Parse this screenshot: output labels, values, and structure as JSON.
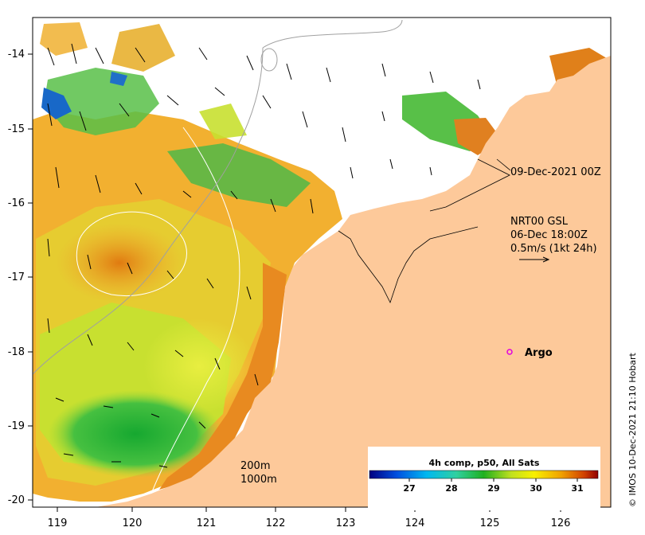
{
  "map": {
    "lon_ticks": [
      "119",
      "120",
      "121",
      "122",
      "123",
      "124",
      "125",
      "126"
    ],
    "lat_ticks": [
      "-14",
      "-15",
      "-16",
      "-17",
      "-18",
      "-19",
      "-20"
    ],
    "timestamp_label": "09-Dec-2021 00Z",
    "current": {
      "source": "NRT00 GSL",
      "time": "06-Dec 18:00Z",
      "scale": "0.5m/s (1kt 24h)"
    },
    "argo": {
      "label": "Argo",
      "marker_color": "#e000e0"
    },
    "isobaths": [
      "200m",
      "1000m"
    ],
    "colorbar": {
      "title": "4h comp, p50, All Sats",
      "ticks": [
        "27",
        "28",
        "29",
        "30",
        "31"
      ]
    },
    "credit": "© IMOS 10-Dec-2021 21:10 Hobart",
    "colors": {
      "land": "#fdc99a",
      "sst_warm": "#f2a21e",
      "sst_mid": "#cde02a",
      "sst_cool": "#3cb83c"
    }
  }
}
